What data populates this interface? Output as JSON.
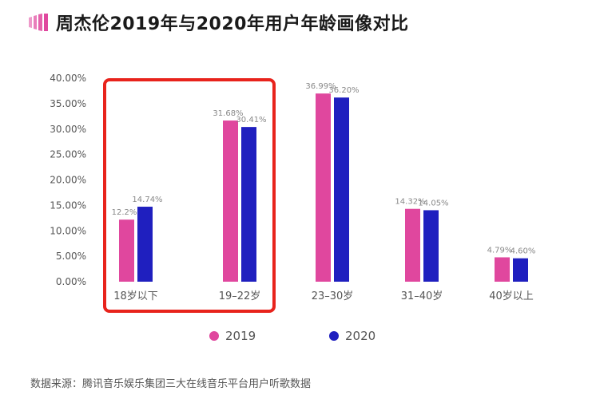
{
  "header": {
    "title": "周杰伦2019年与2020年用户年龄画像对比"
  },
  "footer": {
    "source": "数据来源：腾讯音乐娱乐集团三大在线音乐平台用户听歌数据"
  },
  "colors": {
    "series_2019": "#e0479e",
    "series_2020": "#1f1fbf",
    "highlight_box": "#e8231c",
    "title_icon": "#e0479e",
    "axis_text": "#555555",
    "value_label": "#888888"
  },
  "chart_data": {
    "type": "bar",
    "title": "周杰伦2019年与2020年用户年龄画像对比",
    "xlabel": "",
    "ylabel": "",
    "ylim": [
      0,
      40
    ],
    "y_ticks": [
      "0.00%",
      "5.00%",
      "10.00%",
      "15.00%",
      "20.00%",
      "25.00%",
      "30.00%",
      "35.00%",
      "40.00%"
    ],
    "y_tick_values": [
      0,
      5,
      10,
      15,
      20,
      25,
      30,
      35,
      40
    ],
    "categories": [
      "18岁以下",
      "19–22岁",
      "23–30岁",
      "31–40岁",
      "40岁以上"
    ],
    "series": [
      {
        "name": "2019",
        "values": [
          12.2,
          31.68,
          36.99,
          14.32,
          4.79
        ],
        "labels": [
          "12.2%",
          "31.68%",
          "36.99%",
          "14.32%",
          "4.79%"
        ]
      },
      {
        "name": "2020",
        "values": [
          14.74,
          30.41,
          36.2,
          14.05,
          4.6
        ],
        "labels": [
          "14.74%",
          "30.41%",
          "36.20%",
          "14.05%",
          "4.60%"
        ]
      }
    ],
    "legend": [
      "2019",
      "2020"
    ],
    "legend_position": "bottom",
    "grid": false,
    "highlight": "18岁以下 and 19–22岁 groups outlined with a red box"
  }
}
